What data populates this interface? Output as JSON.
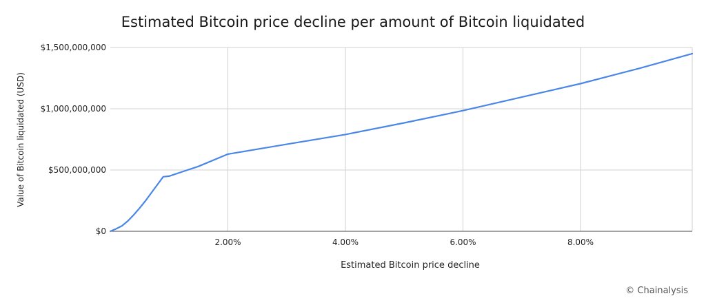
{
  "chart_data": {
    "type": "line",
    "title": "Estimated Bitcoin price decline per amount of Bitcoin liquidated",
    "xlabel": "Estimated Bitcoin price decline",
    "ylabel": "Value of Bitcoin liquidated (USD)",
    "xlim": [
      0,
      9.9
    ],
    "ylim": [
      0,
      1500000000
    ],
    "x_ticks": [
      {
        "value": 2,
        "label": "2.00%"
      },
      {
        "value": 4,
        "label": "4.00%"
      },
      {
        "value": 6,
        "label": "6.00%"
      },
      {
        "value": 8,
        "label": "8.00%"
      }
    ],
    "y_ticks": [
      {
        "value": 0,
        "label": "$0"
      },
      {
        "value": 500000000,
        "label": "$500,000,000"
      },
      {
        "value": 1000000000,
        "label": "$1,000,000,000"
      },
      {
        "value": 1500000000,
        "label": "$1,500,000,000"
      }
    ],
    "grid": true,
    "line_color": "#4a86e8",
    "series": [
      {
        "x": [
          0,
          0.1,
          0.2,
          0.3,
          0.4,
          0.5,
          0.6,
          0.7,
          0.8,
          0.9,
          1.0,
          1.5,
          2.0,
          3.0,
          4.0,
          5.0,
          6.0,
          7.0,
          8.0,
          9.0,
          9.9
        ],
        "values": [
          0,
          20000000,
          45000000,
          85000000,
          135000000,
          190000000,
          250000000,
          315000000,
          380000000,
          445000000,
          450000000,
          530000000,
          630000000,
          710000000,
          790000000,
          885000000,
          985000000,
          1095000000,
          1205000000,
          1330000000,
          1450000000
        ]
      }
    ]
  },
  "footer": {
    "credit": "© Chainalysis"
  }
}
